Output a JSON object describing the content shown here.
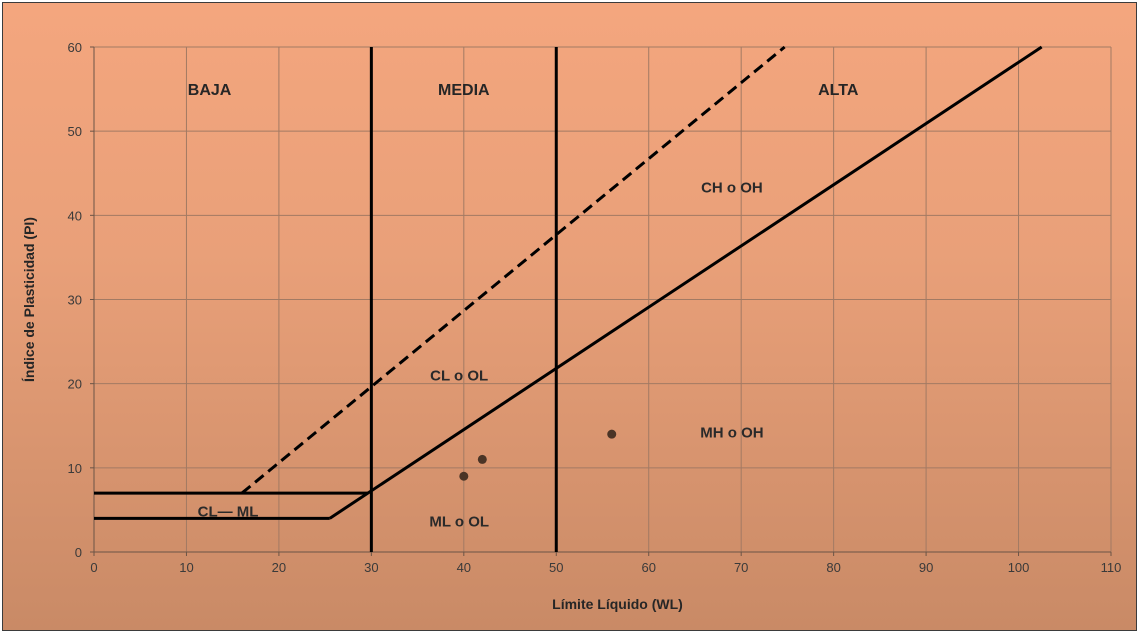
{
  "chart_data": {
    "type": "line",
    "title": "",
    "xlabel": "Límite Líquido (WL)",
    "ylabel": "Índice de Plasticidad (PI)",
    "xlim": [
      0,
      110
    ],
    "ylim": [
      0,
      60
    ],
    "xticks": [
      0,
      10,
      20,
      30,
      40,
      50,
      60,
      70,
      80,
      90,
      100,
      110
    ],
    "yticks": [
      0,
      10,
      20,
      30,
      40,
      50,
      60
    ],
    "grid": true,
    "legend": "none",
    "lines": [
      {
        "id": "a-line",
        "style": "solid",
        "x": [
          25.5,
          102.5
        ],
        "y": [
          4,
          60
        ]
      },
      {
        "id": "u-line",
        "style": "dashed",
        "x": [
          16,
          74.7
        ],
        "y": [
          7,
          60
        ]
      },
      {
        "id": "limit-30",
        "style": "solid",
        "x": [
          30,
          30
        ],
        "y": [
          0,
          60
        ]
      },
      {
        "id": "limit-50",
        "style": "solid",
        "x": [
          50,
          50
        ],
        "y": [
          0,
          60
        ]
      },
      {
        "id": "pi-7",
        "style": "solid",
        "x": [
          0,
          29.6
        ],
        "y": [
          7,
          7
        ]
      },
      {
        "id": "pi-4",
        "style": "solid",
        "x": [
          0,
          25.5
        ],
        "y": [
          4,
          4
        ]
      }
    ],
    "points": [
      {
        "x": 40,
        "y": 9
      },
      {
        "x": 42,
        "y": 11
      },
      {
        "x": 56,
        "y": 14
      }
    ],
    "zones": [
      {
        "text": "BAJA",
        "x": 12.5,
        "y": 55
      },
      {
        "text": "MEDIA",
        "x": 40,
        "y": 55
      },
      {
        "text": "ALTA",
        "x": 80.5,
        "y": 55
      }
    ],
    "regions": [
      {
        "text": "CH  o OH",
        "x": 69,
        "y": 43.3
      },
      {
        "text": "CL  o  OL",
        "x": 39.5,
        "y": 21
      },
      {
        "text": "MH  o OH",
        "x": 69,
        "y": 14.2
      },
      {
        "text": "CL— ML",
        "x": 14.5,
        "y": 4.8
      },
      {
        "text": "ML  o  OL",
        "x": 39.5,
        "y": 3.6
      }
    ],
    "colors": {
      "line": "#000000",
      "grid": "#a27a63",
      "point": "#4a3426"
    }
  }
}
